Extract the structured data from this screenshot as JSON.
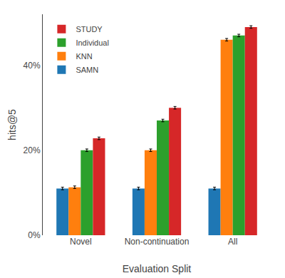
{
  "chart_data": {
    "type": "bar",
    "xlabel": "Evaluation Split",
    "ylabel": "hits@5",
    "categories": [
      "Novel",
      "Non-continuation",
      "All"
    ],
    "series": [
      {
        "name": "SAMN",
        "values": [
          0.11,
          0.11,
          0.11
        ],
        "errors": [
          0.003,
          0.003,
          0.003
        ]
      },
      {
        "name": "KNN",
        "values": [
          0.113,
          0.2,
          0.46
        ],
        "errors": [
          0.003,
          0.003,
          0.003
        ]
      },
      {
        "name": "Individual",
        "values": [
          0.2,
          0.27,
          0.47
        ],
        "errors": [
          0.003,
          0.003,
          0.003
        ]
      },
      {
        "name": "STUDY",
        "values": [
          0.228,
          0.3,
          0.49
        ],
        "errors": [
          0.003,
          0.003,
          0.003
        ]
      }
    ],
    "ylim": [
      0,
      0.52
    ],
    "yticks": [
      {
        "value": 0.0,
        "label": "0%"
      },
      {
        "value": 0.2,
        "label": "20%"
      },
      {
        "value": 0.4,
        "label": "40%"
      }
    ],
    "grid": false,
    "legend": "upper left"
  }
}
